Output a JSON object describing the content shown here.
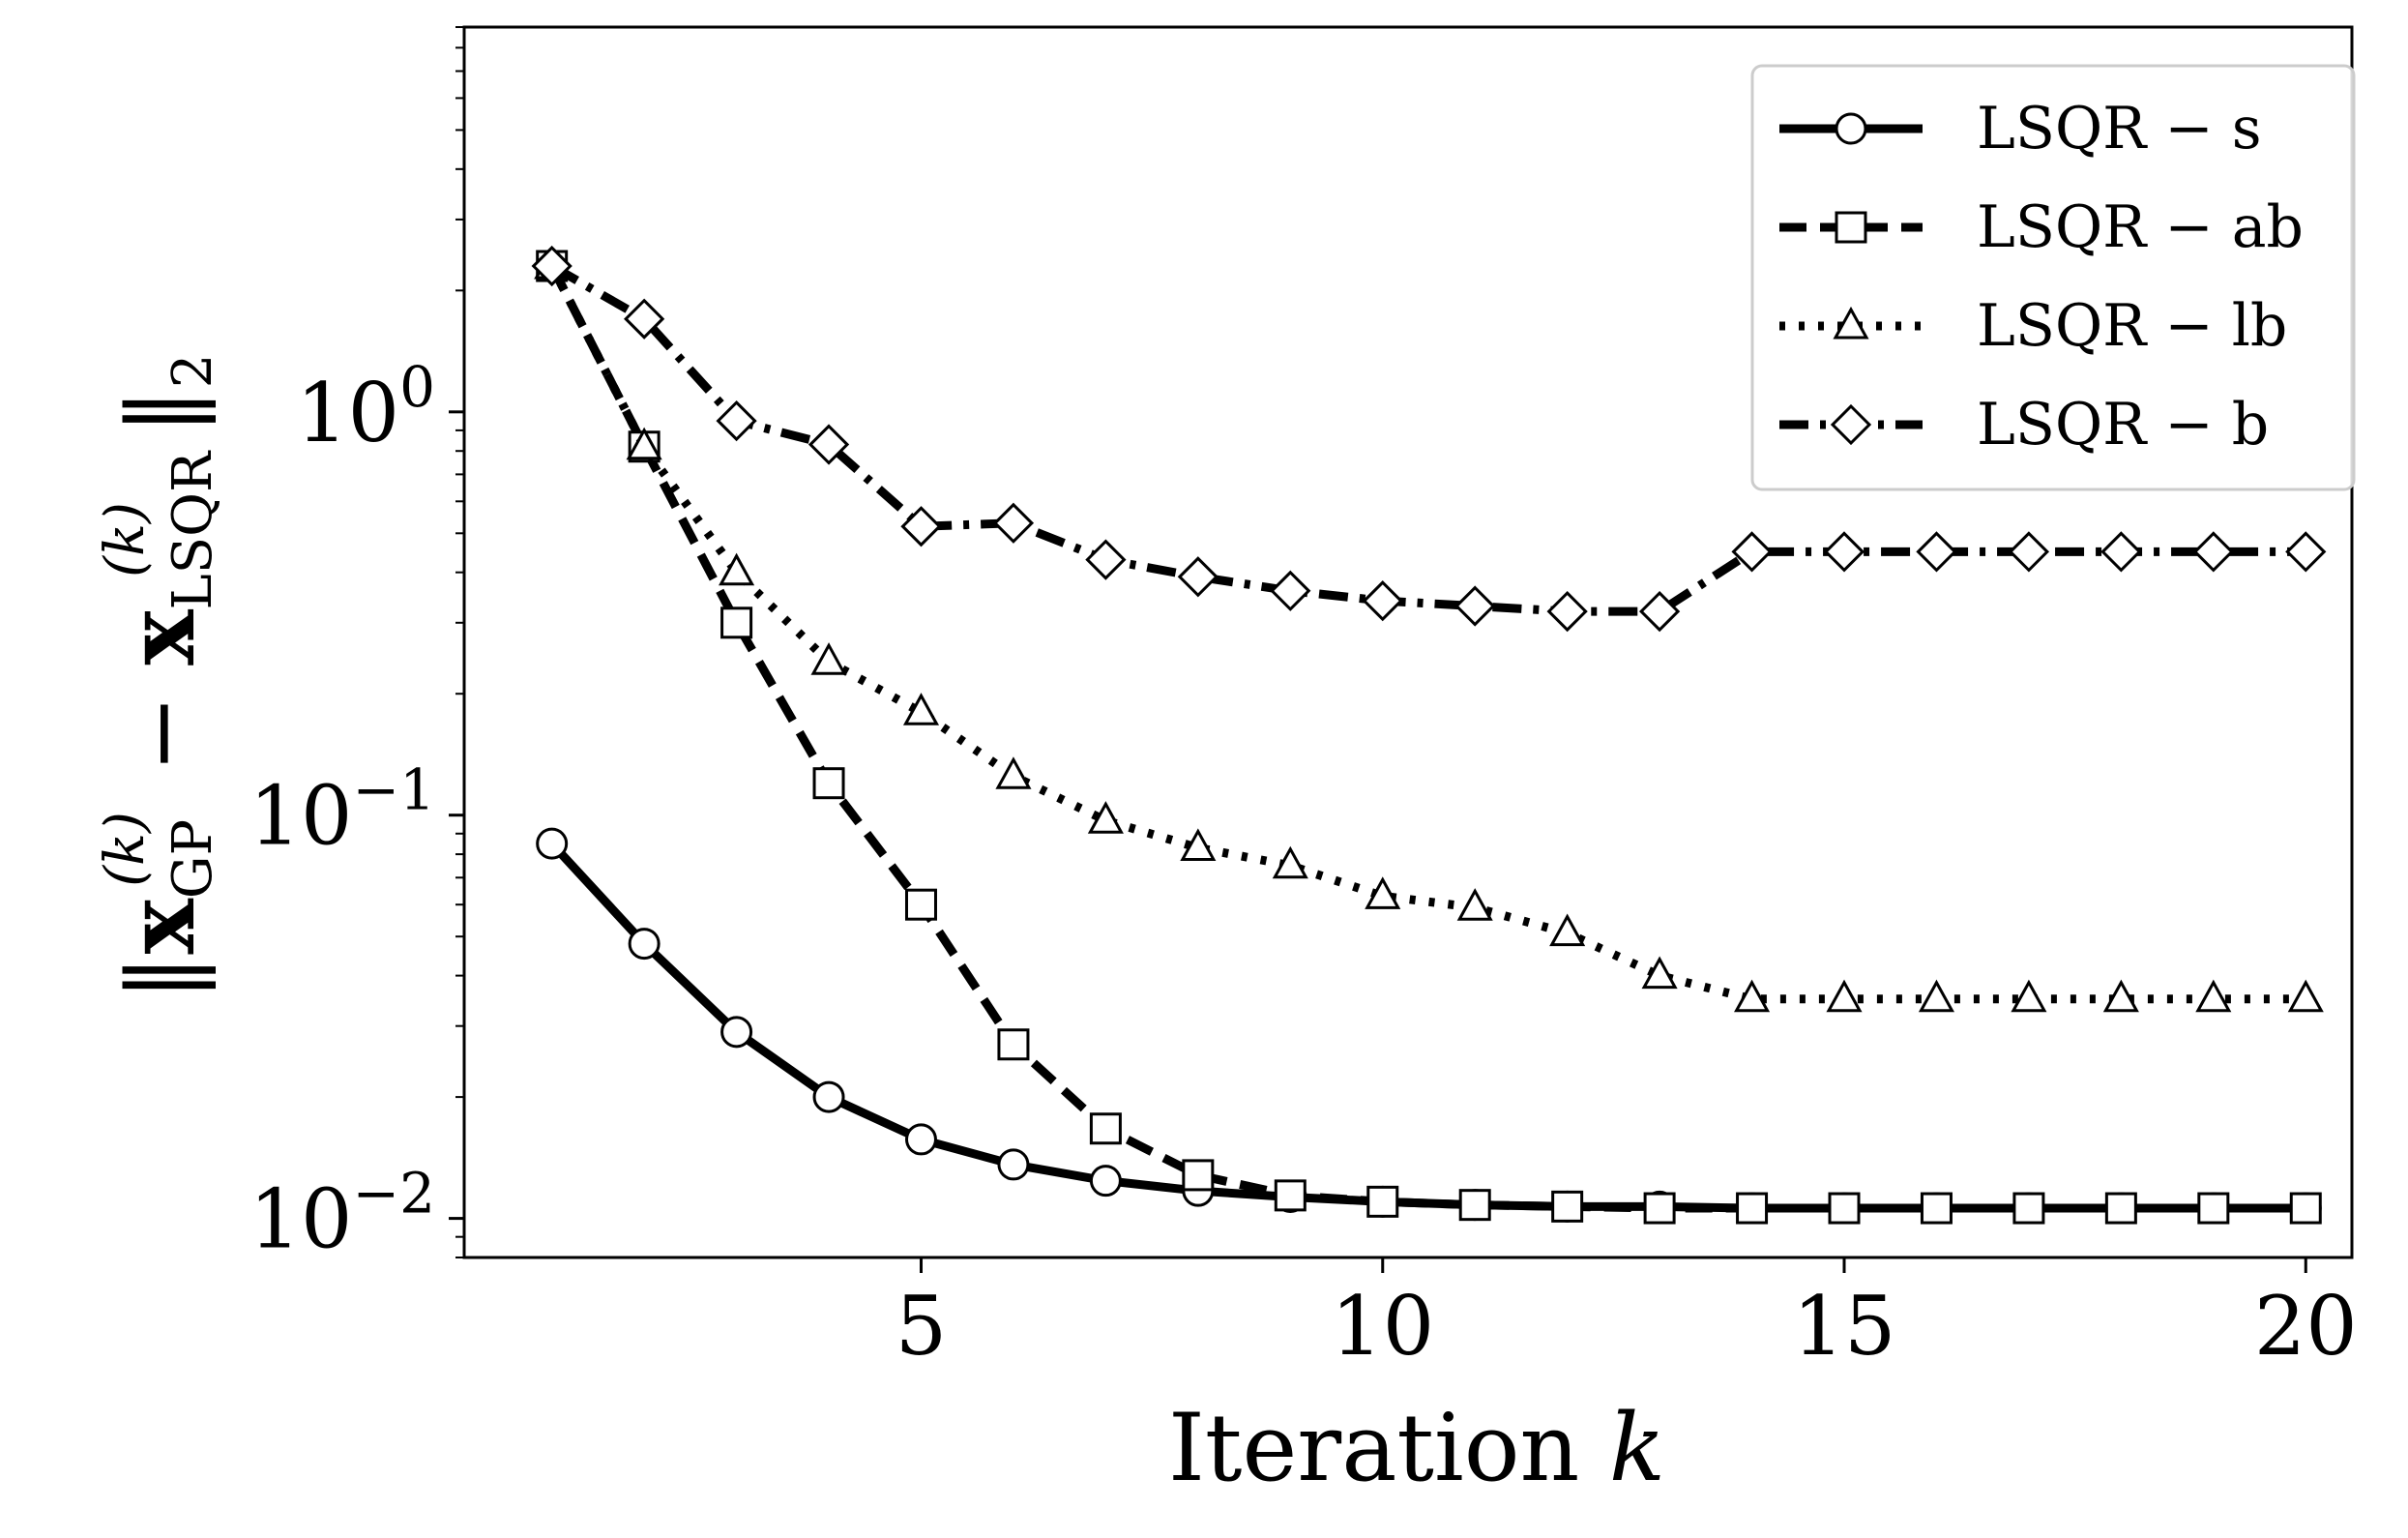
{
  "chart_data": {
    "type": "line",
    "xlabel": "Iteration k",
    "ylabel": "||x_GP^(k) − x_LSQR^(k)||_2",
    "y_scale": "log",
    "xlim": [
      0.05,
      20.5
    ],
    "ylim": [
      0.008,
      9.0
    ],
    "x_ticks": [
      {
        "value": 5,
        "label": "5"
      },
      {
        "value": 10,
        "label": "10"
      },
      {
        "value": 15,
        "label": "15"
      },
      {
        "value": 20,
        "label": "20"
      }
    ],
    "y_ticks": [
      {
        "value": 0.01,
        "base": "10",
        "exp": "−2"
      },
      {
        "value": 0.1,
        "base": "10",
        "exp": "−1"
      },
      {
        "value": 1,
        "base": "10",
        "exp": "0"
      }
    ],
    "legend_position": "top-right",
    "grid": false,
    "x": [
      1,
      2,
      3,
      4,
      5,
      6,
      7,
      8,
      9,
      10,
      11,
      12,
      13,
      14,
      15,
      16,
      17,
      18,
      19,
      20
    ],
    "series": [
      {
        "name": "LSQR − s",
        "marker": "circle",
        "line": "solid",
        "values": [
          0.085,
          0.048,
          0.029,
          0.02,
          0.0157,
          0.0136,
          0.0124,
          0.0117,
          0.0113,
          0.011,
          0.0108,
          0.0107,
          0.0107,
          0.0106,
          0.0106,
          0.0106,
          0.0106,
          0.0106,
          0.0106,
          0.0106
        ]
      },
      {
        "name": "LSQR − ab",
        "marker": "square",
        "line": "dashed",
        "values": [
          2.3,
          0.82,
          0.3,
          0.12,
          0.06,
          0.027,
          0.0167,
          0.0128,
          0.0114,
          0.011,
          0.0108,
          0.0107,
          0.0106,
          0.0106,
          0.0106,
          0.0106,
          0.0106,
          0.0106,
          0.0106,
          0.0106
        ]
      },
      {
        "name": "LSQR − lb",
        "marker": "triangle",
        "line": "dotted",
        "values": [
          2.3,
          0.82,
          0.4,
          0.24,
          0.18,
          0.125,
          0.097,
          0.083,
          0.075,
          0.063,
          0.059,
          0.051,
          0.04,
          0.035,
          0.035,
          0.035,
          0.035,
          0.035,
          0.035,
          0.035
        ]
      },
      {
        "name": "LSQR − b",
        "marker": "diamond",
        "line": "dashdot",
        "values": [
          2.3,
          1.7,
          0.95,
          0.83,
          0.52,
          0.53,
          0.43,
          0.39,
          0.36,
          0.34,
          0.33,
          0.32,
          0.32,
          0.45,
          0.45,
          0.45,
          0.45,
          0.45,
          0.45,
          0.45
        ]
      }
    ]
  }
}
